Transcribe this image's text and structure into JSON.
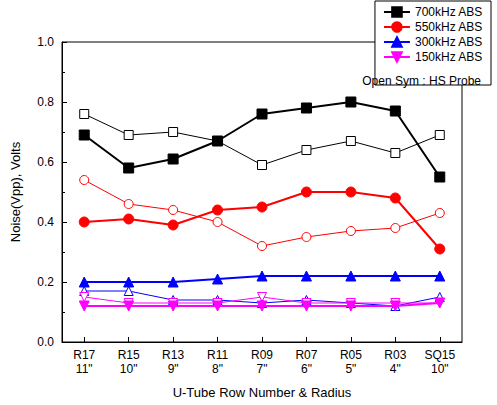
{
  "chart_data": {
    "type": "line",
    "x_label": "U-Tube Row Number & Radius",
    "y_label": "Noise(Vpp), Volts",
    "categories": [
      "R17\n11\"",
      "R15\n10\"",
      "R13\n9\"",
      "R11\n8\"",
      "R09\n7\"",
      "R07\n6\"",
      "R05\n5\"",
      "R03\n4\"",
      "SQ15\n10\""
    ],
    "ylim": [
      0,
      1
    ],
    "yticks": [
      {
        "value": 0,
        "label": "0.0"
      },
      {
        "value": 0.2,
        "label": "0.2"
      },
      {
        "value": 0.4,
        "label": "0.4"
      },
      {
        "value": 0.6,
        "label": "0.6"
      },
      {
        "value": 0.8,
        "label": "0.8"
      },
      {
        "value": 1,
        "label": "1.0"
      }
    ],
    "grid": false,
    "legend": "upper right",
    "annotation": "Open Sym : HS Probe",
    "series": [
      {
        "name": "700kHz ABS",
        "color": "#000000",
        "marker": "square",
        "line_style": "solid",
        "values": [
          0.69,
          0.58,
          0.61,
          0.67,
          0.76,
          0.78,
          0.8,
          0.77,
          0.55
        ]
      },
      {
        "name": "550kHz ABS",
        "color": "#ff0000",
        "marker": "circle",
        "line_style": "solid",
        "values": [
          0.4,
          0.41,
          0.39,
          0.44,
          0.45,
          0.5,
          0.5,
          0.48,
          0.31
        ]
      },
      {
        "name": "300kHz ABS",
        "color": "#0000ff",
        "marker": "triangle",
        "line_style": "solid",
        "values": [
          0.2,
          0.2,
          0.2,
          0.21,
          0.22,
          0.22,
          0.22,
          0.22,
          0.22
        ]
      },
      {
        "name": "150kHz ABS",
        "color": "#ff00ff",
        "marker": "triangle-down",
        "line_style": "solid",
        "values": [
          0.12,
          0.12,
          0.12,
          0.12,
          0.12,
          0.12,
          0.12,
          0.12,
          0.13
        ]
      },
      {
        "color": "#000000",
        "marker": "open-square",
        "line_style": "solid",
        "values": [
          0.76,
          0.69,
          0.7,
          0.67,
          0.59,
          0.64,
          0.67,
          0.63,
          0.69
        ]
      },
      {
        "color": "#ff0000",
        "marker": "open-circle",
        "line_style": "solid",
        "values": [
          0.54,
          0.46,
          0.44,
          0.4,
          0.32,
          0.35,
          0.37,
          0.38,
          0.43
        ]
      },
      {
        "color": "#0000ff",
        "marker": "open-triangle",
        "line_style": "solid",
        "values": [
          0.17,
          0.17,
          0.14,
          0.14,
          0.13,
          0.14,
          0.13,
          0.12,
          0.15
        ]
      },
      {
        "color": "#ff00ff",
        "marker": "open-triangle-down",
        "line_style": "solid",
        "values": [
          0.15,
          0.13,
          0.13,
          0.13,
          0.15,
          0.13,
          0.13,
          0.13,
          0.13
        ]
      }
    ]
  }
}
